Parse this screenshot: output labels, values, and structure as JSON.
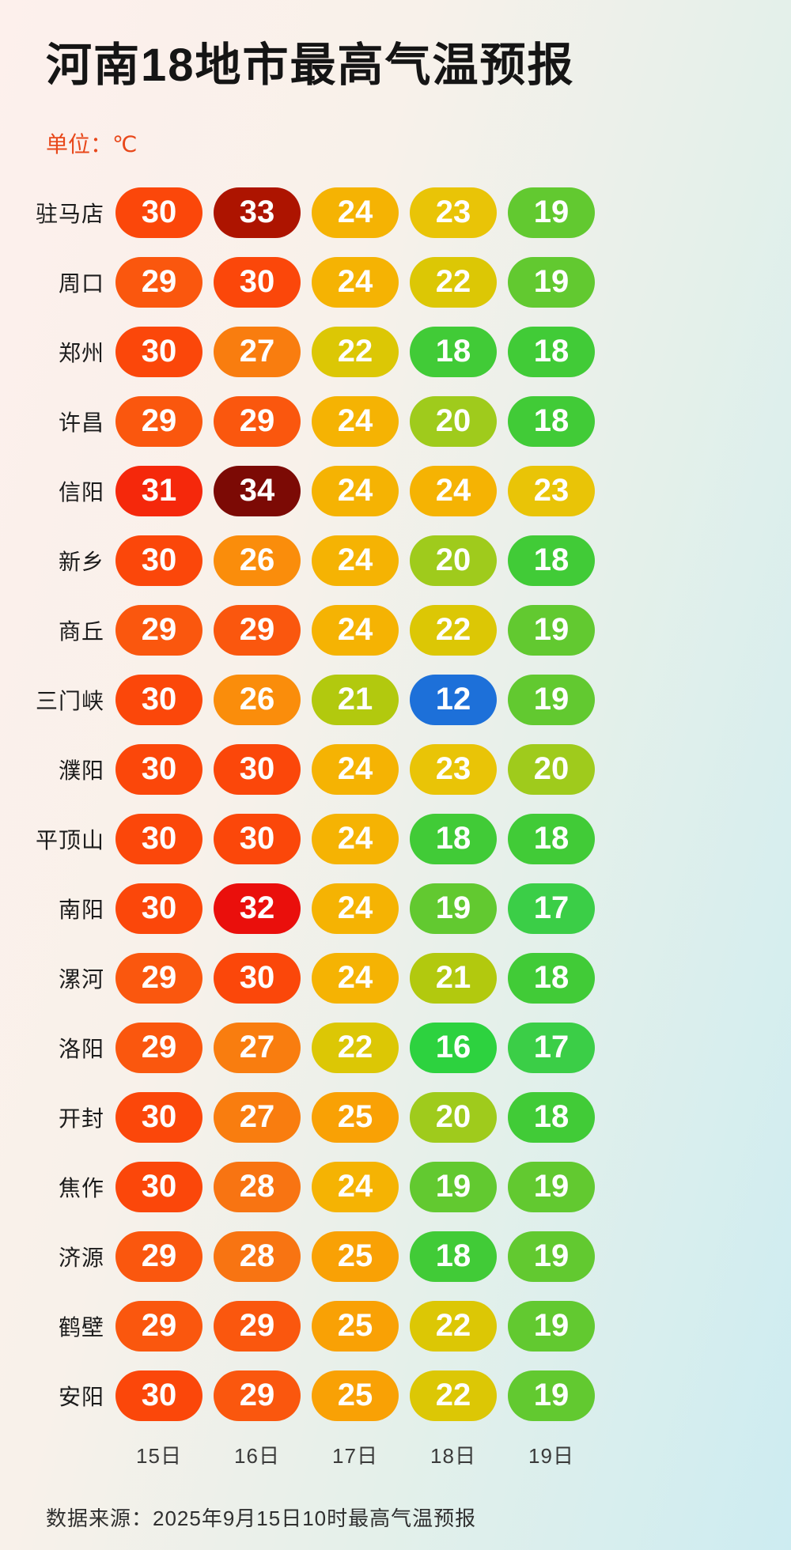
{
  "title": "河南18地市最高气温预报",
  "unit_label": "单位：℃",
  "footer": "数据来源：2025年9月15日10时最高气温预报",
  "chart_data": {
    "type": "heatmap",
    "title": "河南18地市最高气温预报",
    "unit": "℃",
    "columns": [
      "15日",
      "16日",
      "17日",
      "18日",
      "19日"
    ],
    "rows": [
      {
        "city": "驻马店",
        "values": [
          30,
          33,
          24,
          23,
          19
        ]
      },
      {
        "city": "周口",
        "values": [
          29,
          30,
          24,
          22,
          19
        ]
      },
      {
        "city": "郑州",
        "values": [
          30,
          27,
          22,
          18,
          18
        ]
      },
      {
        "city": "许昌",
        "values": [
          29,
          29,
          24,
          20,
          18
        ]
      },
      {
        "city": "信阳",
        "values": [
          31,
          34,
          24,
          24,
          23
        ]
      },
      {
        "city": "新乡",
        "values": [
          30,
          26,
          24,
          20,
          18
        ]
      },
      {
        "city": "商丘",
        "values": [
          29,
          29,
          24,
          22,
          19
        ]
      },
      {
        "city": "三门峡",
        "values": [
          30,
          26,
          21,
          12,
          19
        ]
      },
      {
        "city": "濮阳",
        "values": [
          30,
          30,
          24,
          23,
          20
        ]
      },
      {
        "city": "平顶山",
        "values": [
          30,
          30,
          24,
          18,
          18
        ]
      },
      {
        "city": "南阳",
        "values": [
          30,
          32,
          24,
          19,
          17
        ]
      },
      {
        "city": "漯河",
        "values": [
          29,
          30,
          24,
          21,
          18
        ]
      },
      {
        "city": "洛阳",
        "values": [
          29,
          27,
          22,
          16,
          17
        ]
      },
      {
        "city": "开封",
        "values": [
          30,
          27,
          25,
          20,
          18
        ]
      },
      {
        "city": "焦作",
        "values": [
          30,
          28,
          24,
          19,
          19
        ]
      },
      {
        "city": "济源",
        "values": [
          29,
          28,
          25,
          18,
          19
        ]
      },
      {
        "city": "鹤壁",
        "values": [
          29,
          29,
          25,
          22,
          19
        ]
      },
      {
        "city": "安阳",
        "values": [
          30,
          29,
          25,
          22,
          19
        ]
      }
    ],
    "temp_colors": {
      "12": "#1d70d9",
      "16": "#2dd23f",
      "17": "#3bce47",
      "18": "#41cb37",
      "19": "#62c930",
      "20": "#9fcb1c",
      "21": "#b2c90e",
      "22": "#dcc705",
      "23": "#e9c407",
      "24": "#f5b303",
      "25": "#f9a105",
      "26": "#fa8d0b",
      "27": "#f97d0f",
      "28": "#f87412",
      "29": "#fa570e",
      "30": "#fb470a",
      "31": "#f5280b",
      "32": "#ea0f0c",
      "33": "#ad1400",
      "34": "#7c0a05"
    },
    "layout": {
      "legend": "none",
      "grid": "off",
      "text_color_on_cells": "#ffffff"
    }
  }
}
